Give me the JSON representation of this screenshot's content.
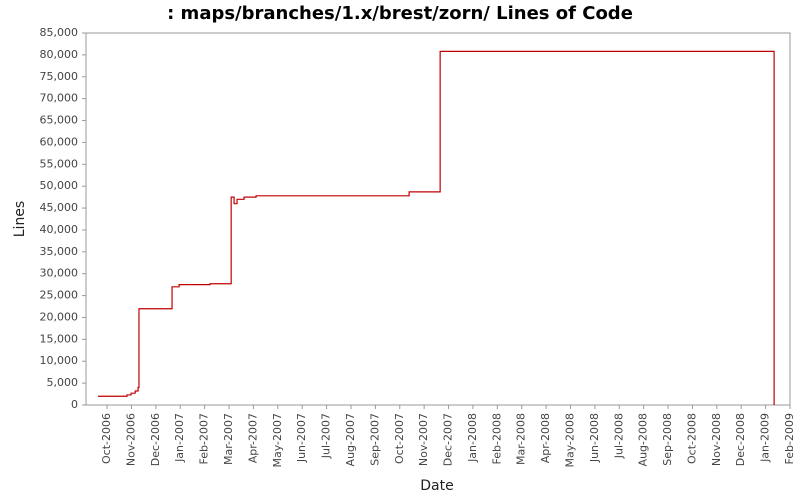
{
  "chart_data": {
    "type": "line",
    "step": "after",
    "title": ": maps/branches/1.x/brest/zorn/ Lines of Code",
    "x_label": "Date",
    "y_label": "Lines",
    "color": "#c00000",
    "x": [
      2006.719,
      2006.818,
      2006.832,
      2006.846,
      2006.856,
      2006.859,
      2006.972,
      2006.996,
      2007.102,
      2007.174,
      2007.184,
      2007.194,
      2007.218,
      2007.259,
      2007.782,
      2007.888,
      2009.029
    ],
    "values": [
      2000,
      2300,
      2700,
      3200,
      4000,
      22000,
      27000,
      27500,
      27700,
      47500,
      46000,
      47000,
      47500,
      47800,
      48700,
      80800,
      0
    ],
    "xlim": [
      2006.678,
      2009.0833
    ],
    "xticks": [
      {
        "value": 2006.75,
        "label": "Oct-2006"
      },
      {
        "value": 2006.8333,
        "label": "Nov-2006"
      },
      {
        "value": 2006.9167,
        "label": "Dec-2006"
      },
      {
        "value": 2007.0,
        "label": "Jan-2007"
      },
      {
        "value": 2007.0833,
        "label": "Feb-2007"
      },
      {
        "value": 2007.1667,
        "label": "Mar-2007"
      },
      {
        "value": 2007.25,
        "label": "Apr-2007"
      },
      {
        "value": 2007.3333,
        "label": "May-2007"
      },
      {
        "value": 2007.4167,
        "label": "Jun-2007"
      },
      {
        "value": 2007.5,
        "label": "Jul-2007"
      },
      {
        "value": 2007.5833,
        "label": "Aug-2007"
      },
      {
        "value": 2007.6667,
        "label": "Sep-2007"
      },
      {
        "value": 2007.75,
        "label": "Oct-2007"
      },
      {
        "value": 2007.8333,
        "label": "Nov-2007"
      },
      {
        "value": 2007.9167,
        "label": "Dec-2007"
      },
      {
        "value": 2008.0,
        "label": "Jan-2008"
      },
      {
        "value": 2008.0833,
        "label": "Feb-2008"
      },
      {
        "value": 2008.1667,
        "label": "Mar-2008"
      },
      {
        "value": 2008.25,
        "label": "Apr-2008"
      },
      {
        "value": 2008.3333,
        "label": "May-2008"
      },
      {
        "value": 2008.4167,
        "label": "Jun-2008"
      },
      {
        "value": 2008.5,
        "label": "Jul-2008"
      },
      {
        "value": 2008.5833,
        "label": "Aug-2008"
      },
      {
        "value": 2008.6667,
        "label": "Sep-2008"
      },
      {
        "value": 2008.75,
        "label": "Oct-2008"
      },
      {
        "value": 2008.8333,
        "label": "Nov-2008"
      },
      {
        "value": 2008.9167,
        "label": "Dec-2008"
      },
      {
        "value": 2009.0,
        "label": "Jan-2009"
      },
      {
        "value": 2009.0833,
        "label": "Feb-2009"
      }
    ],
    "ylim": [
      0,
      85000
    ],
    "yticks": [
      0,
      {
        "value": 5000,
        "label": "5,000"
      },
      {
        "value": 10000,
        "label": "10,000"
      },
      {
        "value": 15000,
        "label": "15,000"
      },
      {
        "value": 20000,
        "label": "20,000"
      },
      {
        "value": 25000,
        "label": "25,000"
      },
      {
        "value": 30000,
        "label": "30,000"
      },
      {
        "value": 35000,
        "label": "35,000"
      },
      {
        "value": 40000,
        "label": "40,000"
      },
      {
        "value": 45000,
        "label": "45,000"
      },
      {
        "value": 50000,
        "label": "50,000"
      },
      {
        "value": 55000,
        "label": "55,000"
      },
      {
        "value": 60000,
        "label": "60,000"
      },
      {
        "value": 65000,
        "label": "65,000"
      },
      {
        "value": 70000,
        "label": "70,000"
      },
      {
        "value": 75000,
        "label": "75,000"
      },
      {
        "value": 80000,
        "label": "80,000"
      },
      {
        "value": 85000,
        "label": "85,000"
      }
    ],
    "grid": false
  }
}
